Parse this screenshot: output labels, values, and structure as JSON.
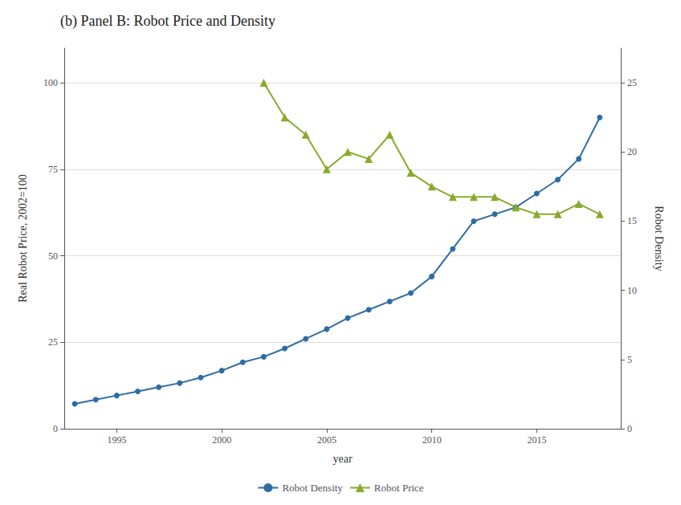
{
  "chart_data": {
    "type": "line",
    "title": "(b) Panel B: Robot Price and Density",
    "xlabel": "year",
    "ylabel": "Real Robot Price, 2002=100",
    "y2label": "Robot Density",
    "series": [
      {
        "name": "Robot Density",
        "color": "#2e6da4",
        "marker": "circle",
        "axis": "y2",
        "x": [
          1993,
          1994,
          1995,
          1996,
          1997,
          1998,
          1999,
          2000,
          2001,
          2002,
          2003,
          2004,
          2005,
          2006,
          2007,
          2008,
          2009,
          2010,
          2011,
          2012,
          2013,
          2014,
          2015,
          2016,
          2017,
          2018
        ],
        "values": [
          1.8,
          2.1,
          2.4,
          2.7,
          3.0,
          3.3,
          3.7,
          4.2,
          4.8,
          5.2,
          5.8,
          6.5,
          7.2,
          8.0,
          8.6,
          9.2,
          9.8,
          11.0,
          13.0,
          15.0,
          15.5,
          16.0,
          17.0,
          18.0,
          19.5,
          22.5
        ]
      },
      {
        "name": "Robot Price",
        "color": "#8aaa2e",
        "marker": "triangle",
        "x": [
          2002,
          2003,
          2004,
          2005,
          2006,
          2007,
          2008,
          2009,
          2010,
          2011,
          2012,
          2013,
          2014,
          2015,
          2016,
          2017,
          2018
        ],
        "values": [
          100,
          90,
          85,
          75,
          80,
          78,
          85,
          74,
          70,
          67,
          67,
          67,
          64,
          62,
          62,
          65,
          62
        ]
      }
    ],
    "xlim": [
      1992.5,
      2019
    ],
    "xticks": [
      1995,
      2000,
      2005,
      2010,
      2015
    ],
    "ylim": [
      0,
      110
    ],
    "yticks": [
      0,
      25,
      50,
      75,
      100
    ],
    "y2lim": [
      0,
      27.5
    ],
    "y2ticks": [
      0,
      5,
      10,
      15,
      20,
      25
    ],
    "grid": true,
    "legend": "bottom"
  }
}
